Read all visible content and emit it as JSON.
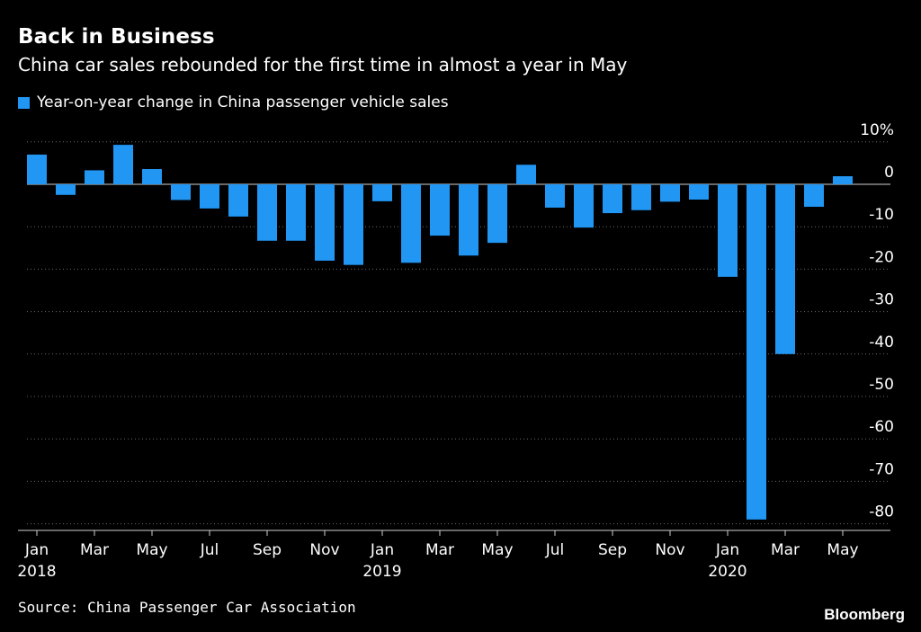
{
  "title": "Back in Business",
  "subtitle": "China car sales rebounded for the first time in almost a year in May",
  "legend_label": "Year-on-year change in China passenger vehicle sales",
  "source": "Source: China Passenger Car Association",
  "brand": "Bloomberg",
  "colors": {
    "bar": "#2196f3",
    "background": "#000000",
    "grid": "#6a6a6a",
    "text": "#ffffff"
  },
  "chart_data": {
    "type": "bar",
    "title": "Back in Business",
    "subtitle": "China car sales rebounded for the first time in almost a year in May",
    "ylabel": "",
    "ylim": [
      -85,
      10
    ],
    "y_ticks": [
      10,
      0,
      -10,
      -20,
      -30,
      -40,
      -50,
      -60,
      -70,
      -80
    ],
    "y_tick_labels": [
      "10%",
      "0",
      "-10",
      "-20",
      "-30",
      "-40",
      "-50",
      "-60",
      "-70",
      "-80"
    ],
    "grid": "horizontal dotted",
    "legend_position": "top-left",
    "categories": [
      "Jan 2018",
      "Feb 2018",
      "Mar 2018",
      "Apr 2018",
      "May 2018",
      "Jun 2018",
      "Jul 2018",
      "Aug 2018",
      "Sep 2018",
      "Oct 2018",
      "Nov 2018",
      "Dec 2018",
      "Jan 2019",
      "Feb 2019",
      "Mar 2019",
      "Apr 2019",
      "May 2019",
      "Jun 2019",
      "Jul 2019",
      "Aug 2019",
      "Sep 2019",
      "Oct 2019",
      "Nov 2019",
      "Dec 2019",
      "Jan 2020",
      "Feb 2020",
      "Mar 2020",
      "Apr 2020",
      "May 2020"
    ],
    "x_tick_labels": [
      {
        "index": 0,
        "month": "Jan",
        "year": "2018"
      },
      {
        "index": 2,
        "month": "Mar",
        "year": ""
      },
      {
        "index": 4,
        "month": "May",
        "year": ""
      },
      {
        "index": 6,
        "month": "Jul",
        "year": ""
      },
      {
        "index": 8,
        "month": "Sep",
        "year": ""
      },
      {
        "index": 10,
        "month": "Nov",
        "year": ""
      },
      {
        "index": 12,
        "month": "Jan",
        "year": "2019"
      },
      {
        "index": 14,
        "month": "Mar",
        "year": ""
      },
      {
        "index": 16,
        "month": "May",
        "year": ""
      },
      {
        "index": 18,
        "month": "Jul",
        "year": ""
      },
      {
        "index": 20,
        "month": "Sep",
        "year": ""
      },
      {
        "index": 22,
        "month": "Nov",
        "year": ""
      },
      {
        "index": 24,
        "month": "Jan",
        "year": "2020"
      },
      {
        "index": 26,
        "month": "Mar",
        "year": ""
      },
      {
        "index": 28,
        "month": "May",
        "year": ""
      }
    ],
    "series": [
      {
        "name": "Year-on-year change in China passenger vehicle sales",
        "values": [
          7,
          -2.5,
          3.3,
          9.3,
          3.6,
          -3.7,
          -5.7,
          -7.6,
          -13.3,
          -13.3,
          -18,
          -19,
          -4,
          -18.5,
          -12.1,
          -16.8,
          -13.8,
          4.6,
          -5.5,
          -10.2,
          -6.8,
          -6.1,
          -4.1,
          -3.6,
          -21.8,
          -79,
          -40,
          -5.3,
          1.9
        ]
      }
    ]
  }
}
